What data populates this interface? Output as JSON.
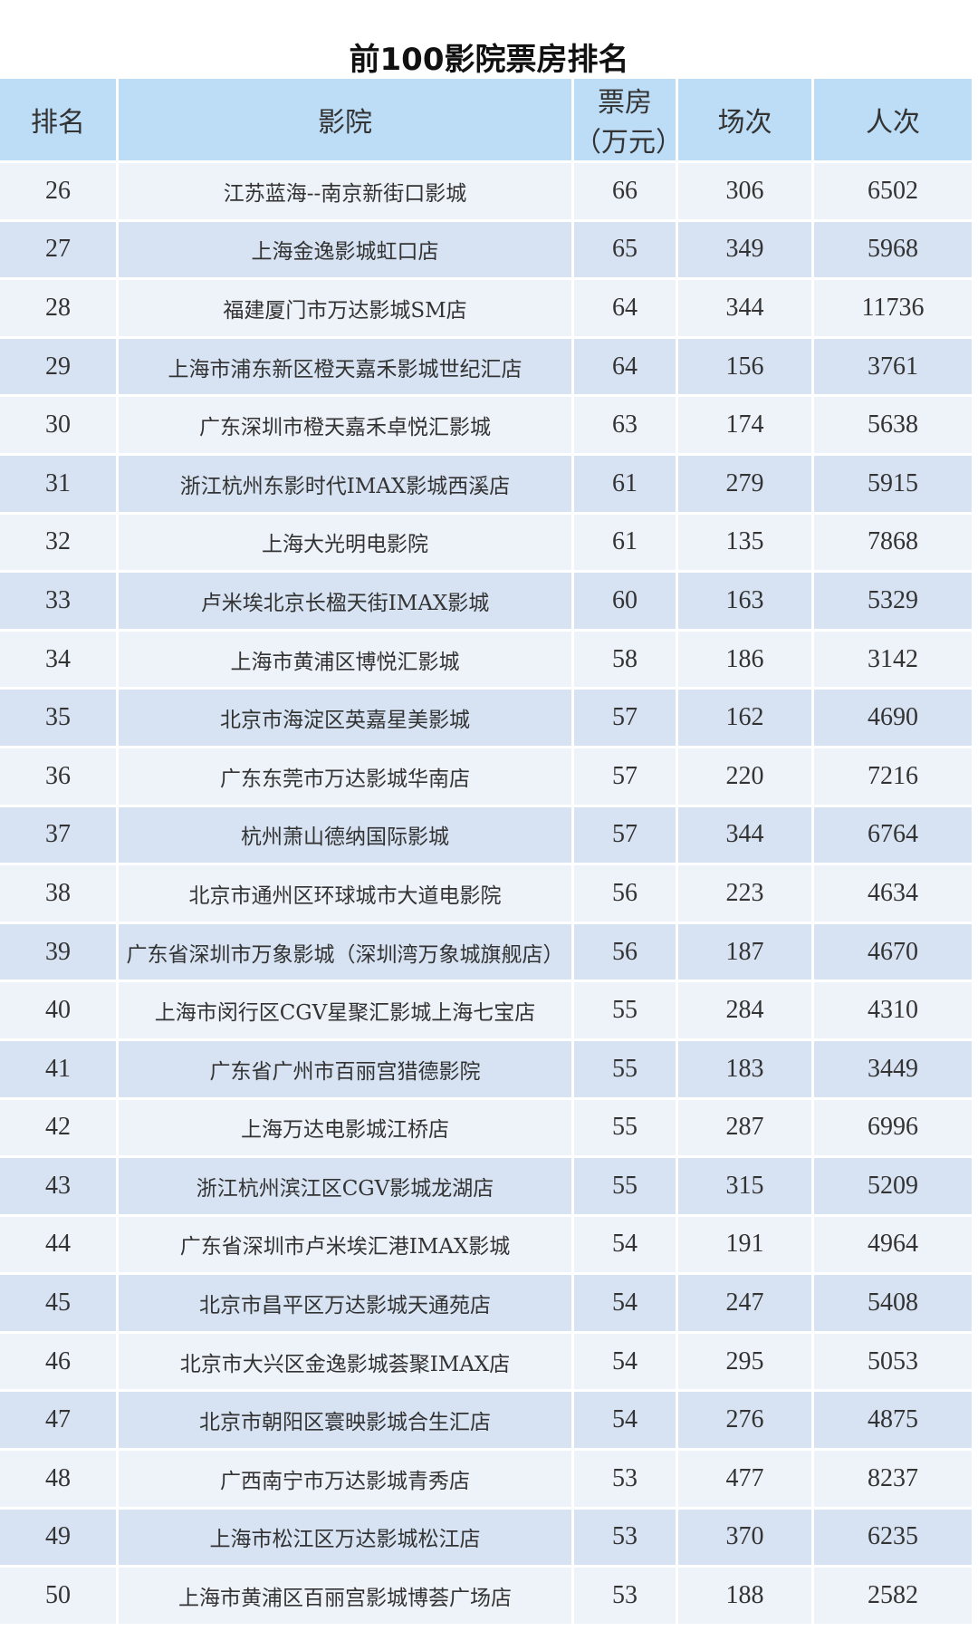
{
  "header": {
    "title": "前100影院票房排名"
  },
  "table": {
    "columns": [
      "排名",
      "影院",
      [
        "票房",
        "（万元）"
      ],
      "场次",
      "人次"
    ],
    "rows": [
      [
        26,
        "江苏蓝海--南京新街口影城",
        66,
        306,
        6502
      ],
      [
        27,
        "上海金逸影城虹口店",
        65,
        349,
        5968
      ],
      [
        28,
        "福建厦门市万达影城SM店",
        64,
        344,
        11736
      ],
      [
        29,
        "上海市浦东新区橙天嘉禾影城世纪汇店",
        64,
        156,
        3761
      ],
      [
        30,
        "广东深圳市橙天嘉禾卓悦汇影城",
        63,
        174,
        5638
      ],
      [
        31,
        "浙江杭州东影时代IMAX影城西溪店",
        61,
        279,
        5915
      ],
      [
        32,
        "上海大光明电影院",
        61,
        135,
        7868
      ],
      [
        33,
        "卢米埃北京长楹天街IMAX影城",
        60,
        163,
        5329
      ],
      [
        34,
        "上海市黄浦区博悦汇影城",
        58,
        186,
        3142
      ],
      [
        35,
        "北京市海淀区英嘉星美影城",
        57,
        162,
        4690
      ],
      [
        36,
        "广东东莞市万达影城华南店",
        57,
        220,
        7216
      ],
      [
        37,
        "杭州萧山德纳国际影城",
        57,
        344,
        6764
      ],
      [
        38,
        "北京市通州区环球城市大道电影院",
        56,
        223,
        4634
      ],
      [
        39,
        "广东省深圳市万象影城（深圳湾万象城旗舰店）",
        56,
        187,
        4670
      ],
      [
        40,
        "上海市闵行区CGV星聚汇影城上海七宝店",
        55,
        284,
        4310
      ],
      [
        41,
        "广东省广州市百丽宫猎德影院",
        55,
        183,
        3449
      ],
      [
        42,
        "上海万达电影城江桥店",
        55,
        287,
        6996
      ],
      [
        43,
        "浙江杭州滨江区CGV影城龙湖店",
        55,
        315,
        5209
      ],
      [
        44,
        "广东省深圳市卢米埃汇港IMAX影城",
        54,
        191,
        4964
      ],
      [
        45,
        "北京市昌平区万达影城天通苑店",
        54,
        247,
        5408
      ],
      [
        46,
        "北京市大兴区金逸影城荟聚IMAX店",
        54,
        295,
        5053
      ],
      [
        47,
        "北京市朝阳区寰映影城合生汇店",
        54,
        276,
        4875
      ],
      [
        48,
        "广西南宁市万达影城青秀店",
        53,
        477,
        8237
      ],
      [
        49,
        "上海市松江区万达影城松江店",
        53,
        370,
        6235
      ],
      [
        50,
        "上海市黄浦区百丽宫影城博荟广场店",
        53,
        188,
        2582
      ]
    ]
  }
}
